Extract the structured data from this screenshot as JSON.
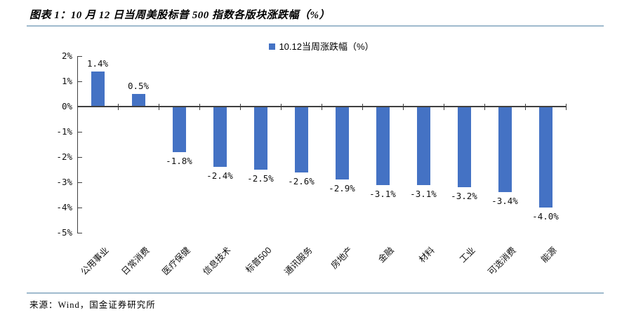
{
  "figure": {
    "title": "图表 1：10 月 12 日当周美股标普 500 指数各版块涨跌幅（%）",
    "source": "来源：Wind，国金证券研究所"
  },
  "legend": {
    "marker": "square",
    "marker_color": "#4472C4",
    "label": "10.12当周涨跌幅（%）"
  },
  "chart_data": {
    "type": "bar",
    "title": "10 月 12 日当周美股标普 500 指数各版块涨跌幅（%）",
    "series_name": "10.12当周涨跌幅（%）",
    "categories": [
      "公用事业",
      "日常消费",
      "医疗保健",
      "信息技术",
      "标普500",
      "通讯服务",
      "房地产",
      "金融",
      "材料",
      "工业",
      "可选消费",
      "能源"
    ],
    "values": [
      1.4,
      0.5,
      -1.8,
      -2.4,
      -2.5,
      -2.6,
      -2.9,
      -3.1,
      -3.1,
      -3.2,
      -3.4,
      -4.0
    ],
    "data_labels": [
      "1.4%",
      "0.5%",
      "-1.8%",
      "-2.4%",
      "-2.5%",
      "-2.6%",
      "-2.9%",
      "-3.1%",
      "-3.1%",
      "-3.2%",
      "-3.4%",
      "-4.0%"
    ],
    "y_tick_labels": [
      "2%",
      "1%",
      "0%",
      "-1%",
      "-2%",
      "-3%",
      "-4%",
      "-5%"
    ],
    "ylim": [
      -5,
      2
    ],
    "xlabel": "",
    "ylabel": "",
    "grid": false,
    "legend_position": "top-center",
    "bar_color": "#4472C4"
  },
  "colors": {
    "bar": "#4472C4",
    "divider": "#9FBACD",
    "axis": "#3f3f3f"
  }
}
